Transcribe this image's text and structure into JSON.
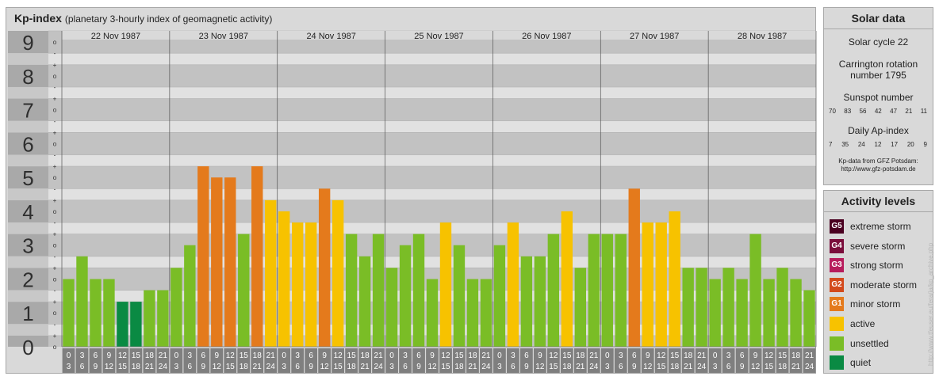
{
  "title": "Kp-index",
  "subtitle": "(planetary 3-hourly index of geomagnetic activity)",
  "chart_data": {
    "type": "bar",
    "ylim": [
      0,
      9
    ],
    "y_tick_labels": [
      "0",
      "1",
      "2",
      "3",
      "4",
      "5",
      "6",
      "7",
      "8",
      "9"
    ],
    "minor_tick_labels": [
      "+",
      "o",
      "-"
    ],
    "days": [
      "22 Nov 1987",
      "23 Nov 1987",
      "24 Nov 1987",
      "25 Nov 1987",
      "26 Nov 1987",
      "27 Nov 1987",
      "28 Nov 1987"
    ],
    "hours": [
      [
        "0",
        "3"
      ],
      [
        "3",
        "6"
      ],
      [
        "6",
        "9"
      ],
      [
        "9",
        "12"
      ],
      [
        "12",
        "15"
      ],
      [
        "15",
        "18"
      ],
      [
        "18",
        "21"
      ],
      [
        "21",
        "24"
      ]
    ],
    "values": [
      2,
      2.67,
      2,
      2,
      1.33,
      1.33,
      1.67,
      1.67,
      2.33,
      3,
      5.33,
      5,
      5,
      3.33,
      5.33,
      4.33,
      4,
      3.67,
      3.67,
      4.67,
      4.33,
      3.33,
      2.67,
      3.33,
      2.33,
      3,
      3.33,
      2,
      3.67,
      3,
      2,
      2,
      3,
      3.67,
      2.67,
      2.67,
      3.33,
      4,
      2.33,
      3.33,
      3.33,
      3.33,
      4.67,
      3.67,
      3.67,
      4,
      2.33,
      2.33,
      2,
      2.33,
      2,
      3.33,
      2,
      2.33,
      2,
      1.67
    ],
    "colors": {
      "quiet": "#0a8a43",
      "unsettled": "#7abd26",
      "active": "#f7c200",
      "minor": "#e47a1c",
      "moderate": "#d34a1c",
      "strong": "#b71c5c",
      "severe": "#7a0e3b",
      "extreme": "#4a0020"
    }
  },
  "solar": {
    "title": "Solar data",
    "cycle": "Solar cycle 22",
    "carrington_line1": "Carrington rotation",
    "carrington_line2": "number 1795",
    "sunspot_label": "Sunspot number",
    "sunspot_numbers": [
      "70",
      "83",
      "56",
      "42",
      "47",
      "21",
      "11"
    ],
    "ap_label": "Daily Ap-index",
    "ap_values": [
      "7",
      "35",
      "24",
      "12",
      "17",
      "20",
      "9"
    ],
    "source_line1": "Kp-data from GFZ Potsdam:",
    "source_line2": "http://www.gfz-potsdam.de"
  },
  "levels": {
    "title": "Activity levels",
    "items": [
      {
        "badge": "G5",
        "label": "extreme storm",
        "color": "#4a0020"
      },
      {
        "badge": "G4",
        "label": "severe storm",
        "color": "#7a0e3b"
      },
      {
        "badge": "G3",
        "label": "strong storm",
        "color": "#b71c5c"
      },
      {
        "badge": "G2",
        "label": "moderate storm",
        "color": "#d34a1c"
      },
      {
        "badge": "G1",
        "label": "minor storm",
        "color": "#e47a1c"
      },
      {
        "badge": "",
        "label": "active",
        "color": "#f7c200"
      },
      {
        "badge": "",
        "label": "unsettled",
        "color": "#7abd26"
      },
      {
        "badge": "",
        "label": "quiet",
        "color": "#0a8a43"
      }
    ]
  },
  "watermark": "http://www.tfeuser.eu/fera/ja/kp_archive.php"
}
